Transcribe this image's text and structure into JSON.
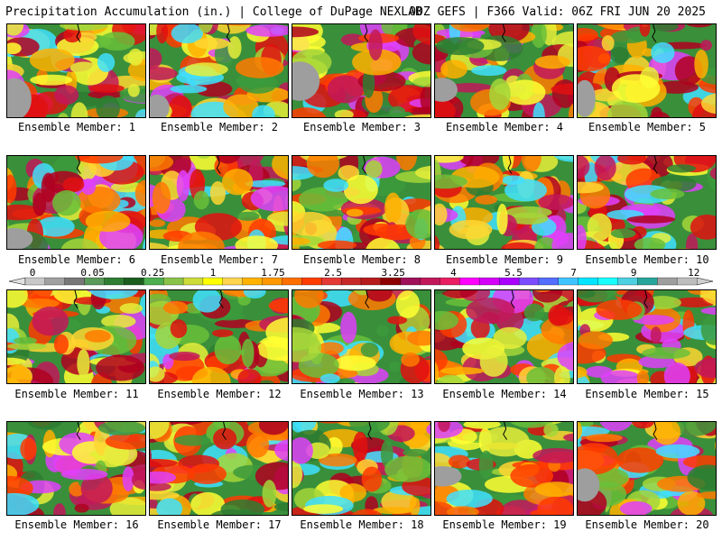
{
  "header": {
    "left": "Precipitation Accumulation (in.) | College of DuPage NEXLAB",
    "right": "00Z GEFS | F366 Valid: 06Z FRI JUN 20 2025"
  },
  "colorbar": {
    "labels": [
      "0",
      "0.05",
      "0.25",
      "1",
      "1.75",
      "2.5",
      "3.25",
      "4",
      "5.5",
      "7",
      "9",
      "12"
    ],
    "colors": [
      "#c8c8c8",
      "#a0a0a0",
      "#787878",
      "#5a9a5a",
      "#2e7d32",
      "#1b5e20",
      "#4caf50",
      "#8bc34a",
      "#cddc39",
      "#ffff00",
      "#ffd54f",
      "#ffb300",
      "#ff9800",
      "#ff6f00",
      "#ff3d00",
      "#e53935",
      "#c62828",
      "#b71c1c",
      "#8e0000",
      "#a0105a",
      "#c2185b",
      "#e91e63",
      "#ff00ff",
      "#d500f9",
      "#aa00ff",
      "#7c4dff",
      "#536dfe",
      "#40c4ff",
      "#00e5ff",
      "#18ffff",
      "#4dd0e1",
      "#26a69a",
      "#9e9e9e",
      "#bdbdbd"
    ]
  },
  "panels": [
    {
      "label": "Ensemble Member: 1"
    },
    {
      "label": "Ensemble Member: 2"
    },
    {
      "label": "Ensemble Member: 3"
    },
    {
      "label": "Ensemble Member: 4"
    },
    {
      "label": "Ensemble Member: 5"
    },
    {
      "label": "Ensemble Member: 6"
    },
    {
      "label": "Ensemble Member: 7"
    },
    {
      "label": "Ensemble Member: 8"
    },
    {
      "label": "Ensemble Member: 9"
    },
    {
      "label": "Ensemble Member: 10"
    },
    {
      "label": "Ensemble Member: 11"
    },
    {
      "label": "Ensemble Member: 12"
    },
    {
      "label": "Ensemble Member: 13"
    },
    {
      "label": "Ensemble Member: 14"
    },
    {
      "label": "Ensemble Member: 15"
    },
    {
      "label": "Ensemble Member: 16"
    },
    {
      "label": "Ensemble Member: 17"
    },
    {
      "label": "Ensemble Member: 18"
    },
    {
      "label": "Ensemble Member: 19"
    },
    {
      "label": "Ensemble Member: 20"
    }
  ]
}
